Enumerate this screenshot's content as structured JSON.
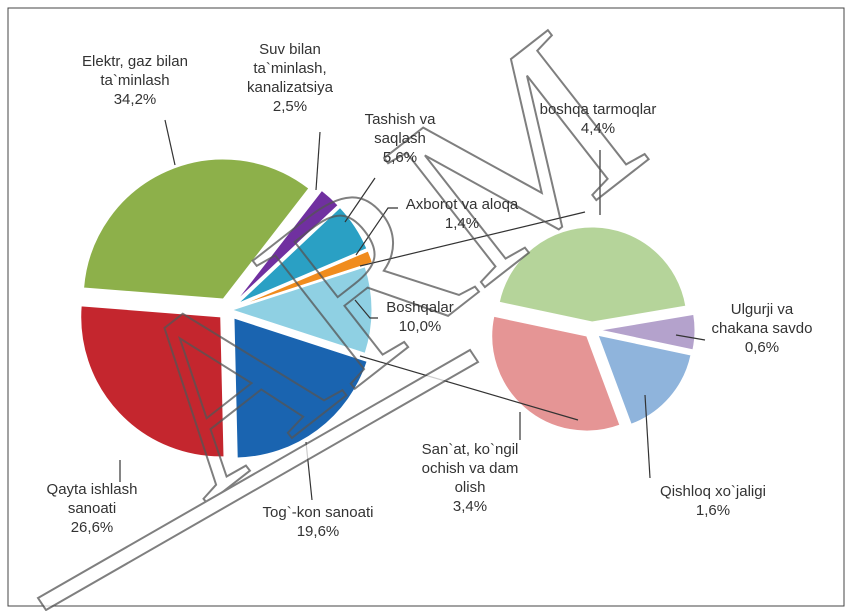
{
  "watermark": "ARM",
  "chart_data": [
    {
      "type": "pie",
      "categories": [
        "Boshqalar",
        "Tog`-kon sanoati",
        "Qayta ishlash sanoati",
        "Elektr, gaz bilan ta`minlash",
        "Suv bilan ta`minlash, kanalizatsiya",
        "Tashish va saqlash",
        "Axborot va aloqa"
      ],
      "values": [
        10.0,
        19.6,
        26.6,
        34.2,
        2.5,
        5.6,
        1.4
      ],
      "value_labels": [
        "10,0%",
        "19,6%",
        "26,6%",
        "34,2%",
        "2,5%",
        "5,6%",
        "1,4%"
      ],
      "colors": [
        "#8fd0e3",
        "#1a64b0",
        "#c4262e",
        "#8db04a",
        "#7030a0",
        "#2aa0c4",
        "#f08c1e"
      ]
    },
    {
      "type": "pie",
      "categories": [
        "boshqa tarmoqlar",
        "Ulgurji va chakana savdo",
        "Qishloq xo`jaligi",
        "San`at, ko`ngil ochish va dam olish"
      ],
      "values": [
        4.4,
        0.6,
        1.6,
        3.4
      ],
      "value_labels": [
        "4,4%",
        "0,6%",
        "1,6%",
        "3,4%"
      ],
      "colors": [
        "#b5d49a",
        "#b4a2cc",
        "#8fb4dc",
        "#e59595"
      ]
    }
  ]
}
